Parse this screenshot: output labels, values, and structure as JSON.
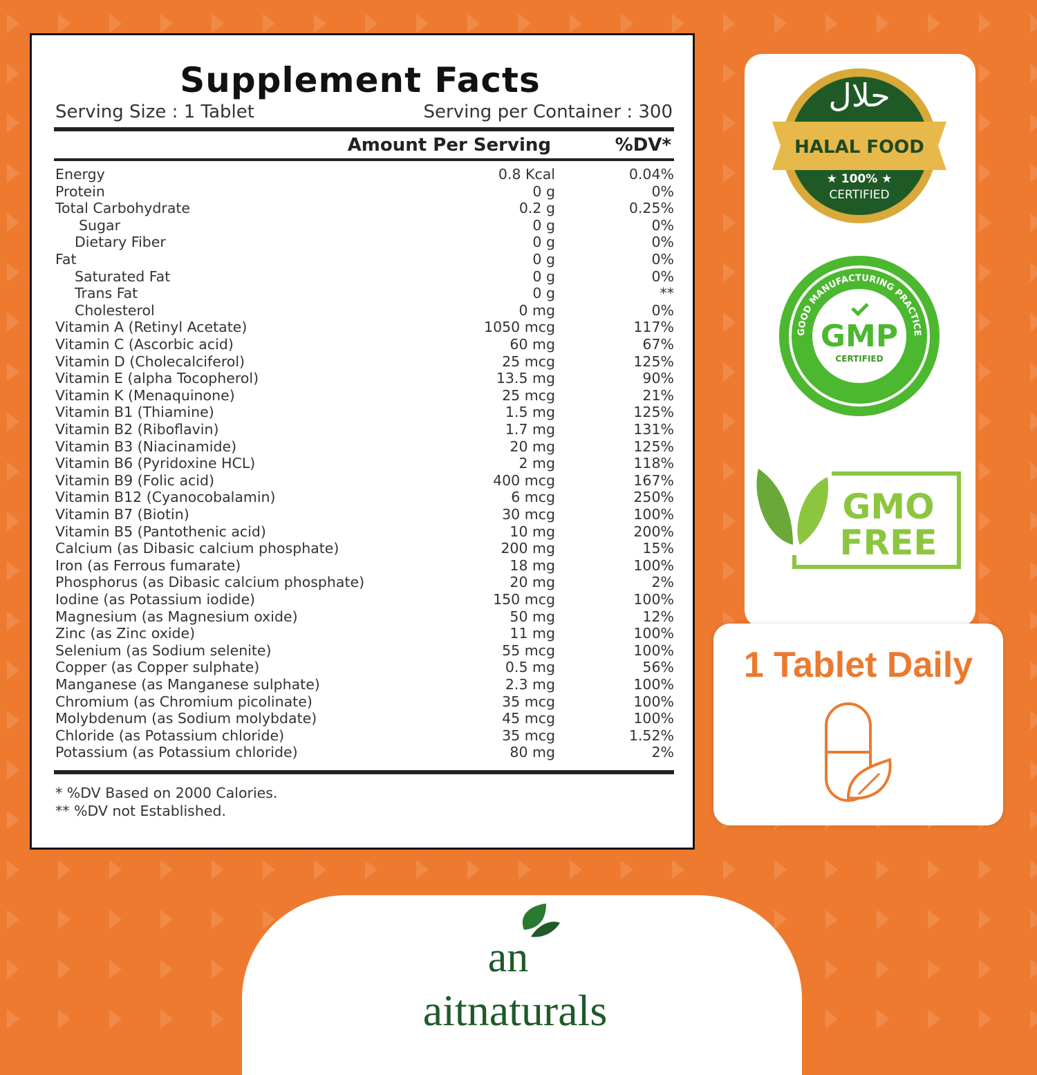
{
  "facts": {
    "title": "Supplement Facts",
    "serving_size": "Serving Size : 1 Tablet",
    "servings_per_container": "Serving per Container : 300",
    "col_amount": "Amount Per Serving",
    "col_dv": "%DV*",
    "rows": [
      {
        "name": "Energy",
        "amount": "0.8 Kcal",
        "dv": "0.04%",
        "indent": 0
      },
      {
        "name": "Protein",
        "amount": "0 g",
        "dv": "0%",
        "indent": 0
      },
      {
        "name": "Total Carbohydrate",
        "amount": "0.2 g",
        "dv": "0.25%",
        "indent": 0
      },
      {
        "name": "Sugar",
        "amount": "0 g",
        "dv": "0%",
        "indent": 2
      },
      {
        "name": "Dietary Fiber",
        "amount": "0 g",
        "dv": "0%",
        "indent": 1
      },
      {
        "name": "Fat",
        "amount": "0 g",
        "dv": "0%",
        "indent": 0
      },
      {
        "name": "Saturated Fat",
        "amount": "0 g",
        "dv": "0%",
        "indent": 1
      },
      {
        "name": "Trans Fat",
        "amount": "0 g",
        "dv": "**",
        "indent": 1
      },
      {
        "name": "Cholesterol",
        "amount": "0 mg",
        "dv": "0%",
        "indent": 1
      },
      {
        "name": "Vitamin A (Retinyl Acetate)",
        "amount": "1050 mcg",
        "dv": "117%",
        "indent": 0
      },
      {
        "name": "Vitamin C (Ascorbic acid)",
        "amount": "60 mg",
        "dv": "67%",
        "indent": 0
      },
      {
        "name": "Vitamin D (Cholecalciferol)",
        "amount": "25 mcg",
        "dv": "125%",
        "indent": 0
      },
      {
        "name": "Vitamin E (alpha Tocopherol)",
        "amount": "13.5 mg",
        "dv": "90%",
        "indent": 0
      },
      {
        "name": "Vitamin K (Menaquinone)",
        "amount": "25 mcg",
        "dv": "21%",
        "indent": 0
      },
      {
        "name": "Vitamin B1 (Thiamine)",
        "amount": "1.5 mg",
        "dv": "125%",
        "indent": 0
      },
      {
        "name": "Vitamin B2 (Riboflavin)",
        "amount": "1.7 mg",
        "dv": "131%",
        "indent": 0
      },
      {
        "name": "Vitamin B3 (Niacinamide)",
        "amount": "20 mg",
        "dv": "125%",
        "indent": 0
      },
      {
        "name": "Vitamin B6 (Pyridoxine HCL)",
        "amount": "2 mg",
        "dv": "118%",
        "indent": 0
      },
      {
        "name": "Vitamin B9 (Folic acid)",
        "amount": "400 mcg",
        "dv": "167%",
        "indent": 0
      },
      {
        "name": "Vitamin B12 (Cyanocobalamin)",
        "amount": "6 mcg",
        "dv": "250%",
        "indent": 0
      },
      {
        "name": "Vitamin B7 (Biotin)",
        "amount": "30 mcg",
        "dv": "100%",
        "indent": 0
      },
      {
        "name": "Vitamin B5 (Pantothenic acid)",
        "amount": "10 mg",
        "dv": "200%",
        "indent": 0
      },
      {
        "name": "Calcium (as Dibasic calcium phosphate)",
        "amount": "200 mg",
        "dv": "15%",
        "indent": 0
      },
      {
        "name": "Iron (as Ferrous fumarate)",
        "amount": "18 mg",
        "dv": "100%",
        "indent": 0
      },
      {
        "name": "Phosphorus (as Dibasic calcium phosphate)",
        "amount": "20 mg",
        "dv": "2%",
        "indent": 0
      },
      {
        "name": "Iodine (as Potassium iodide)",
        "amount": "150 mcg",
        "dv": "100%",
        "indent": 0
      },
      {
        "name": "Magnesium (as Magnesium oxide)",
        "amount": "50 mg",
        "dv": "12%",
        "indent": 0
      },
      {
        "name": "Zinc (as Zinc  oxide)",
        "amount": "11 mg",
        "dv": "100%",
        "indent": 0
      },
      {
        "name": "Selenium (as Sodium selenite)",
        "amount": "55 mcg",
        "dv": "100%",
        "indent": 0
      },
      {
        "name": "Copper (as Copper sulphate)",
        "amount": "0.5 mg",
        "dv": "56%",
        "indent": 0
      },
      {
        "name": "Manganese (as Manganese sulphate)",
        "amount": "2.3 mg",
        "dv": "100%",
        "indent": 0
      },
      {
        "name": "Chromium (as Chromium picolinate)",
        "amount": "35 mcg",
        "dv": "100%",
        "indent": 0
      },
      {
        "name": "Molybdenum (as Sodium molybdate)",
        "amount": "45 mcg",
        "dv": "100%",
        "indent": 0
      },
      {
        "name": "Chloride (as Potassium chloride)",
        "amount": "35 mcg",
        "dv": "1.52%",
        "indent": 0
      },
      {
        "name": "Potassium (as Potassium chloride)",
        "amount": "80 mg",
        "dv": "2%",
        "indent": 0
      }
    ],
    "footnote1": "* %DV Based on 2000 Calories.",
    "footnote2": "** %DV not Established."
  },
  "badges": {
    "halal": {
      "arabic": "حلال",
      "label": "HALAL FOOD",
      "pct": "★ 100% ★",
      "cert": "CERTIFIED"
    },
    "gmp": {
      "ring": "GOOD MANUFACTURING PRACTICE",
      "label": "GMP",
      "cert": "CERTIFIED"
    },
    "gmo": {
      "line1": "GMO",
      "line2": "FREE"
    }
  },
  "dosage": {
    "label": "1 Tablet Daily",
    "icon": "capsule-leaf-icon"
  },
  "brand": {
    "name": "aitnaturals",
    "mark": "an"
  },
  "colors": {
    "background": "#ee7a30",
    "accent": "#ea7a2f",
    "brand_green": "#1e5a2a",
    "gmp_green": "#4cb830",
    "gmo_green": "#8cc63f"
  }
}
